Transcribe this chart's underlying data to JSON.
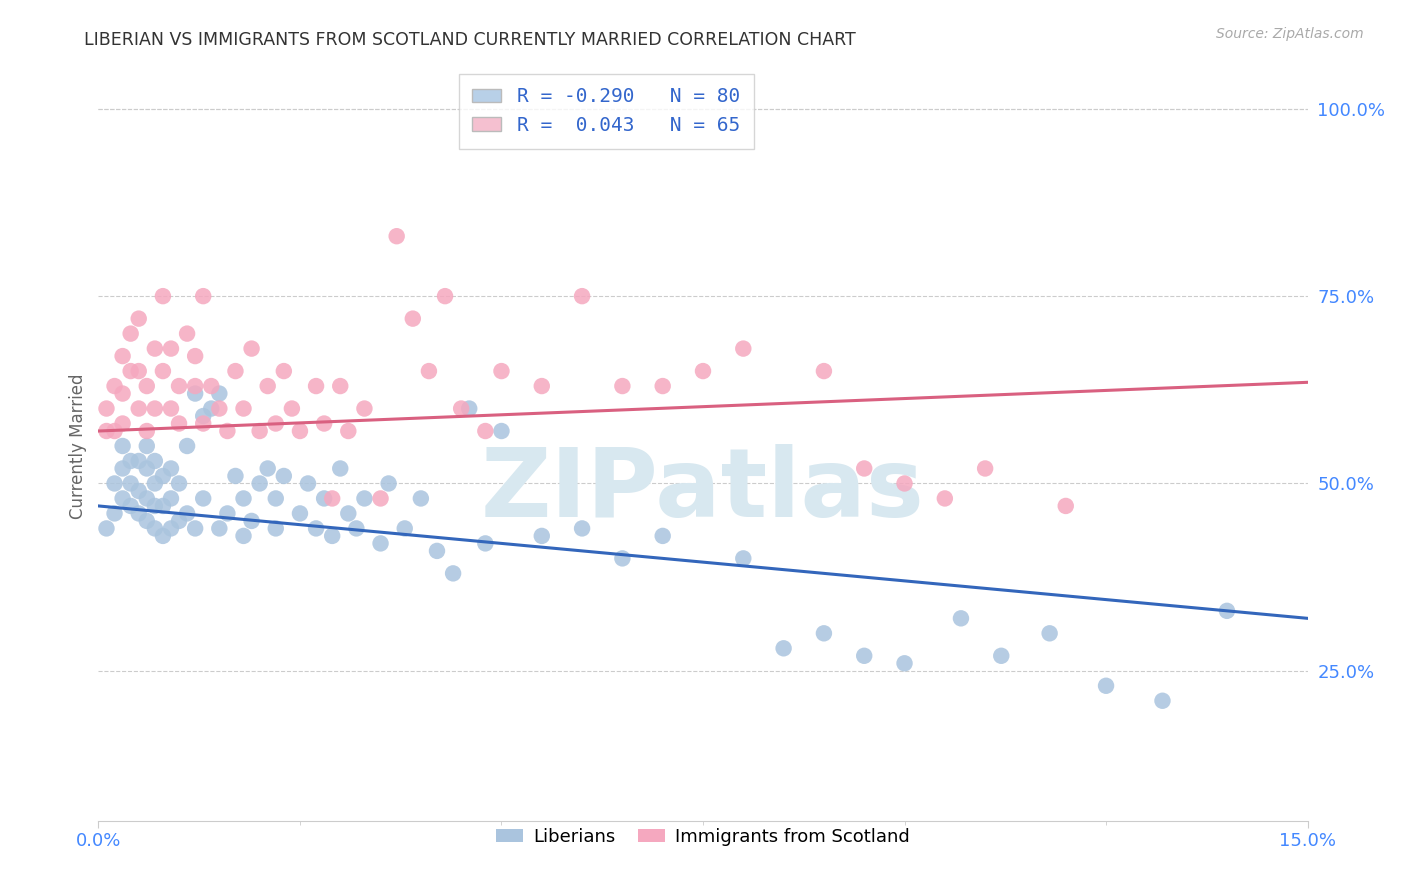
{
  "title": "LIBERIAN VS IMMIGRANTS FROM SCOTLAND CURRENTLY MARRIED CORRELATION CHART",
  "source": "Source: ZipAtlas.com",
  "ylabel": "Currently Married",
  "right_yticks": [
    "100.0%",
    "75.0%",
    "50.0%",
    "25.0%"
  ],
  "right_ytick_vals": [
    1.0,
    0.75,
    0.5,
    0.25
  ],
  "xmin": 0.0,
  "xmax": 0.15,
  "ymin": 0.05,
  "ymax": 1.05,
  "liberian_color": "#aac4de",
  "scotland_color": "#f5a8bf",
  "liberian_line_color": "#3366bb",
  "scotland_line_color": "#d96080",
  "legend_color1": "#b8d0e8",
  "legend_color2": "#f5c0d0",
  "legend_text_color": "#3366cc",
  "watermark_text": "ZIPatlas",
  "watermark_color": "#d8e8f0",
  "title_color": "#333333",
  "source_color": "#aaaaaa",
  "ylabel_color": "#666666",
  "xtick_color": "#4488ff",
  "ytick_color": "#4488ff",
  "grid_color": "#cccccc",
  "blue_line_y0": 0.47,
  "blue_line_y1": 0.32,
  "pink_line_y0": 0.57,
  "pink_line_y1": 0.635,
  "liberian_x": [
    0.001,
    0.002,
    0.002,
    0.003,
    0.003,
    0.003,
    0.004,
    0.004,
    0.004,
    0.005,
    0.005,
    0.005,
    0.006,
    0.006,
    0.006,
    0.006,
    0.007,
    0.007,
    0.007,
    0.007,
    0.008,
    0.008,
    0.008,
    0.009,
    0.009,
    0.009,
    0.01,
    0.01,
    0.011,
    0.011,
    0.012,
    0.012,
    0.013,
    0.013,
    0.014,
    0.015,
    0.015,
    0.016,
    0.017,
    0.018,
    0.018,
    0.019,
    0.02,
    0.021,
    0.022,
    0.022,
    0.023,
    0.025,
    0.026,
    0.027,
    0.028,
    0.029,
    0.03,
    0.031,
    0.032,
    0.033,
    0.035,
    0.036,
    0.038,
    0.04,
    0.042,
    0.044,
    0.046,
    0.048,
    0.05,
    0.055,
    0.06,
    0.065,
    0.07,
    0.08,
    0.085,
    0.09,
    0.095,
    0.1,
    0.107,
    0.112,
    0.118,
    0.125,
    0.132,
    0.14
  ],
  "liberian_y": [
    0.44,
    0.46,
    0.5,
    0.48,
    0.52,
    0.55,
    0.47,
    0.5,
    0.53,
    0.46,
    0.49,
    0.53,
    0.45,
    0.48,
    0.52,
    0.55,
    0.44,
    0.47,
    0.5,
    0.53,
    0.43,
    0.47,
    0.51,
    0.44,
    0.48,
    0.52,
    0.45,
    0.5,
    0.46,
    0.55,
    0.44,
    0.62,
    0.48,
    0.59,
    0.6,
    0.62,
    0.44,
    0.46,
    0.51,
    0.43,
    0.48,
    0.45,
    0.5,
    0.52,
    0.44,
    0.48,
    0.51,
    0.46,
    0.5,
    0.44,
    0.48,
    0.43,
    0.52,
    0.46,
    0.44,
    0.48,
    0.42,
    0.5,
    0.44,
    0.48,
    0.41,
    0.38,
    0.6,
    0.42,
    0.57,
    0.43,
    0.44,
    0.4,
    0.43,
    0.4,
    0.28,
    0.3,
    0.27,
    0.26,
    0.32,
    0.27,
    0.3,
    0.23,
    0.21,
    0.33
  ],
  "scotland_x": [
    0.001,
    0.001,
    0.002,
    0.002,
    0.003,
    0.003,
    0.003,
    0.004,
    0.004,
    0.005,
    0.005,
    0.005,
    0.006,
    0.006,
    0.007,
    0.007,
    0.008,
    0.008,
    0.009,
    0.009,
    0.01,
    0.01,
    0.011,
    0.012,
    0.012,
    0.013,
    0.013,
    0.014,
    0.015,
    0.016,
    0.017,
    0.018,
    0.019,
    0.02,
    0.021,
    0.022,
    0.023,
    0.024,
    0.025,
    0.027,
    0.028,
    0.029,
    0.03,
    0.031,
    0.033,
    0.035,
    0.037,
    0.039,
    0.041,
    0.043,
    0.045,
    0.048,
    0.05,
    0.055,
    0.06,
    0.065,
    0.07,
    0.075,
    0.08,
    0.09,
    0.095,
    0.1,
    0.105,
    0.11,
    0.12
  ],
  "scotland_y": [
    0.57,
    0.6,
    0.57,
    0.63,
    0.62,
    0.67,
    0.58,
    0.65,
    0.7,
    0.6,
    0.65,
    0.72,
    0.57,
    0.63,
    0.68,
    0.6,
    0.75,
    0.65,
    0.6,
    0.68,
    0.63,
    0.58,
    0.7,
    0.63,
    0.67,
    0.58,
    0.75,
    0.63,
    0.6,
    0.57,
    0.65,
    0.6,
    0.68,
    0.57,
    0.63,
    0.58,
    0.65,
    0.6,
    0.57,
    0.63,
    0.58,
    0.48,
    0.63,
    0.57,
    0.6,
    0.48,
    0.83,
    0.72,
    0.65,
    0.75,
    0.6,
    0.57,
    0.65,
    0.63,
    0.75,
    0.63,
    0.63,
    0.65,
    0.68,
    0.65,
    0.52,
    0.5,
    0.48,
    0.52,
    0.47
  ]
}
